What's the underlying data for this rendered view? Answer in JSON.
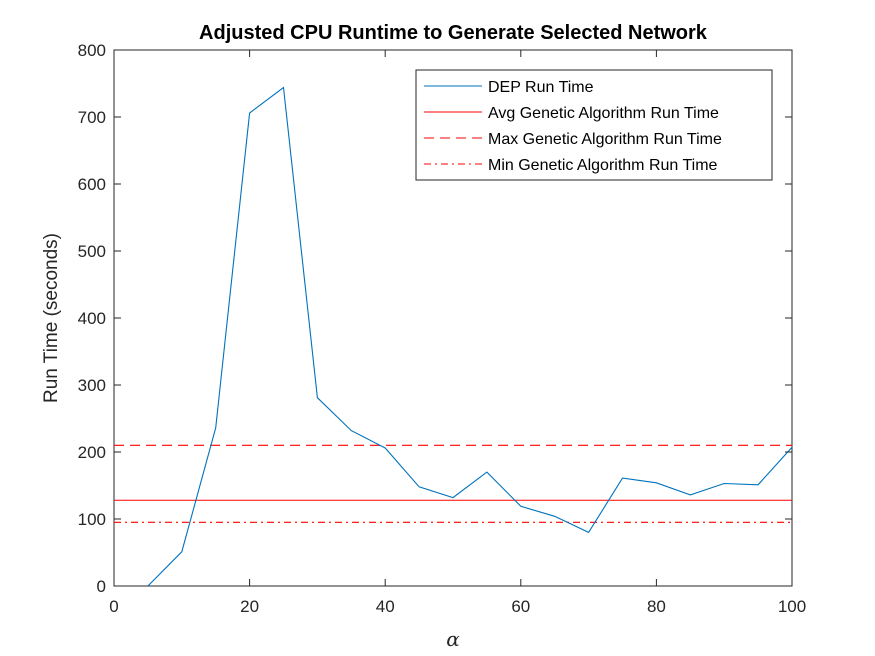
{
  "chart_data": {
    "type": "line",
    "title": "Adjusted CPU Runtime to Generate Selected Network",
    "xlabel": "α",
    "ylabel": "Run Time (seconds)",
    "xlim": [
      0,
      100
    ],
    "ylim": [
      0,
      800
    ],
    "xticks": [
      0,
      20,
      40,
      60,
      80,
      100
    ],
    "yticks": [
      0,
      100,
      200,
      300,
      400,
      500,
      600,
      700,
      800
    ],
    "grid": false,
    "legend_position": "top-right",
    "series": [
      {
        "name": "DEP Run Time",
        "color": "#0072BD",
        "style": "solid",
        "x": [
          5,
          10,
          15,
          20,
          25,
          30,
          35,
          40,
          45,
          50,
          55,
          60,
          65,
          70,
          75,
          80,
          85,
          90,
          95,
          100
        ],
        "y": [
          0,
          51,
          236,
          706,
          744,
          281,
          232,
          206,
          148,
          132,
          170,
          119,
          104,
          80,
          161,
          154,
          136,
          153,
          151,
          207
        ]
      },
      {
        "name": "Avg Genetic Algorithm Run Time",
        "color": "#FF0000",
        "style": "solid",
        "value": 128
      },
      {
        "name": "Max Genetic Algorithm Run Time",
        "color": "#FF0000",
        "style": "dashed",
        "value": 210
      },
      {
        "name": "Min Genetic Algorithm Run Time",
        "color": "#FF0000",
        "style": "dashdot",
        "value": 95
      }
    ]
  }
}
